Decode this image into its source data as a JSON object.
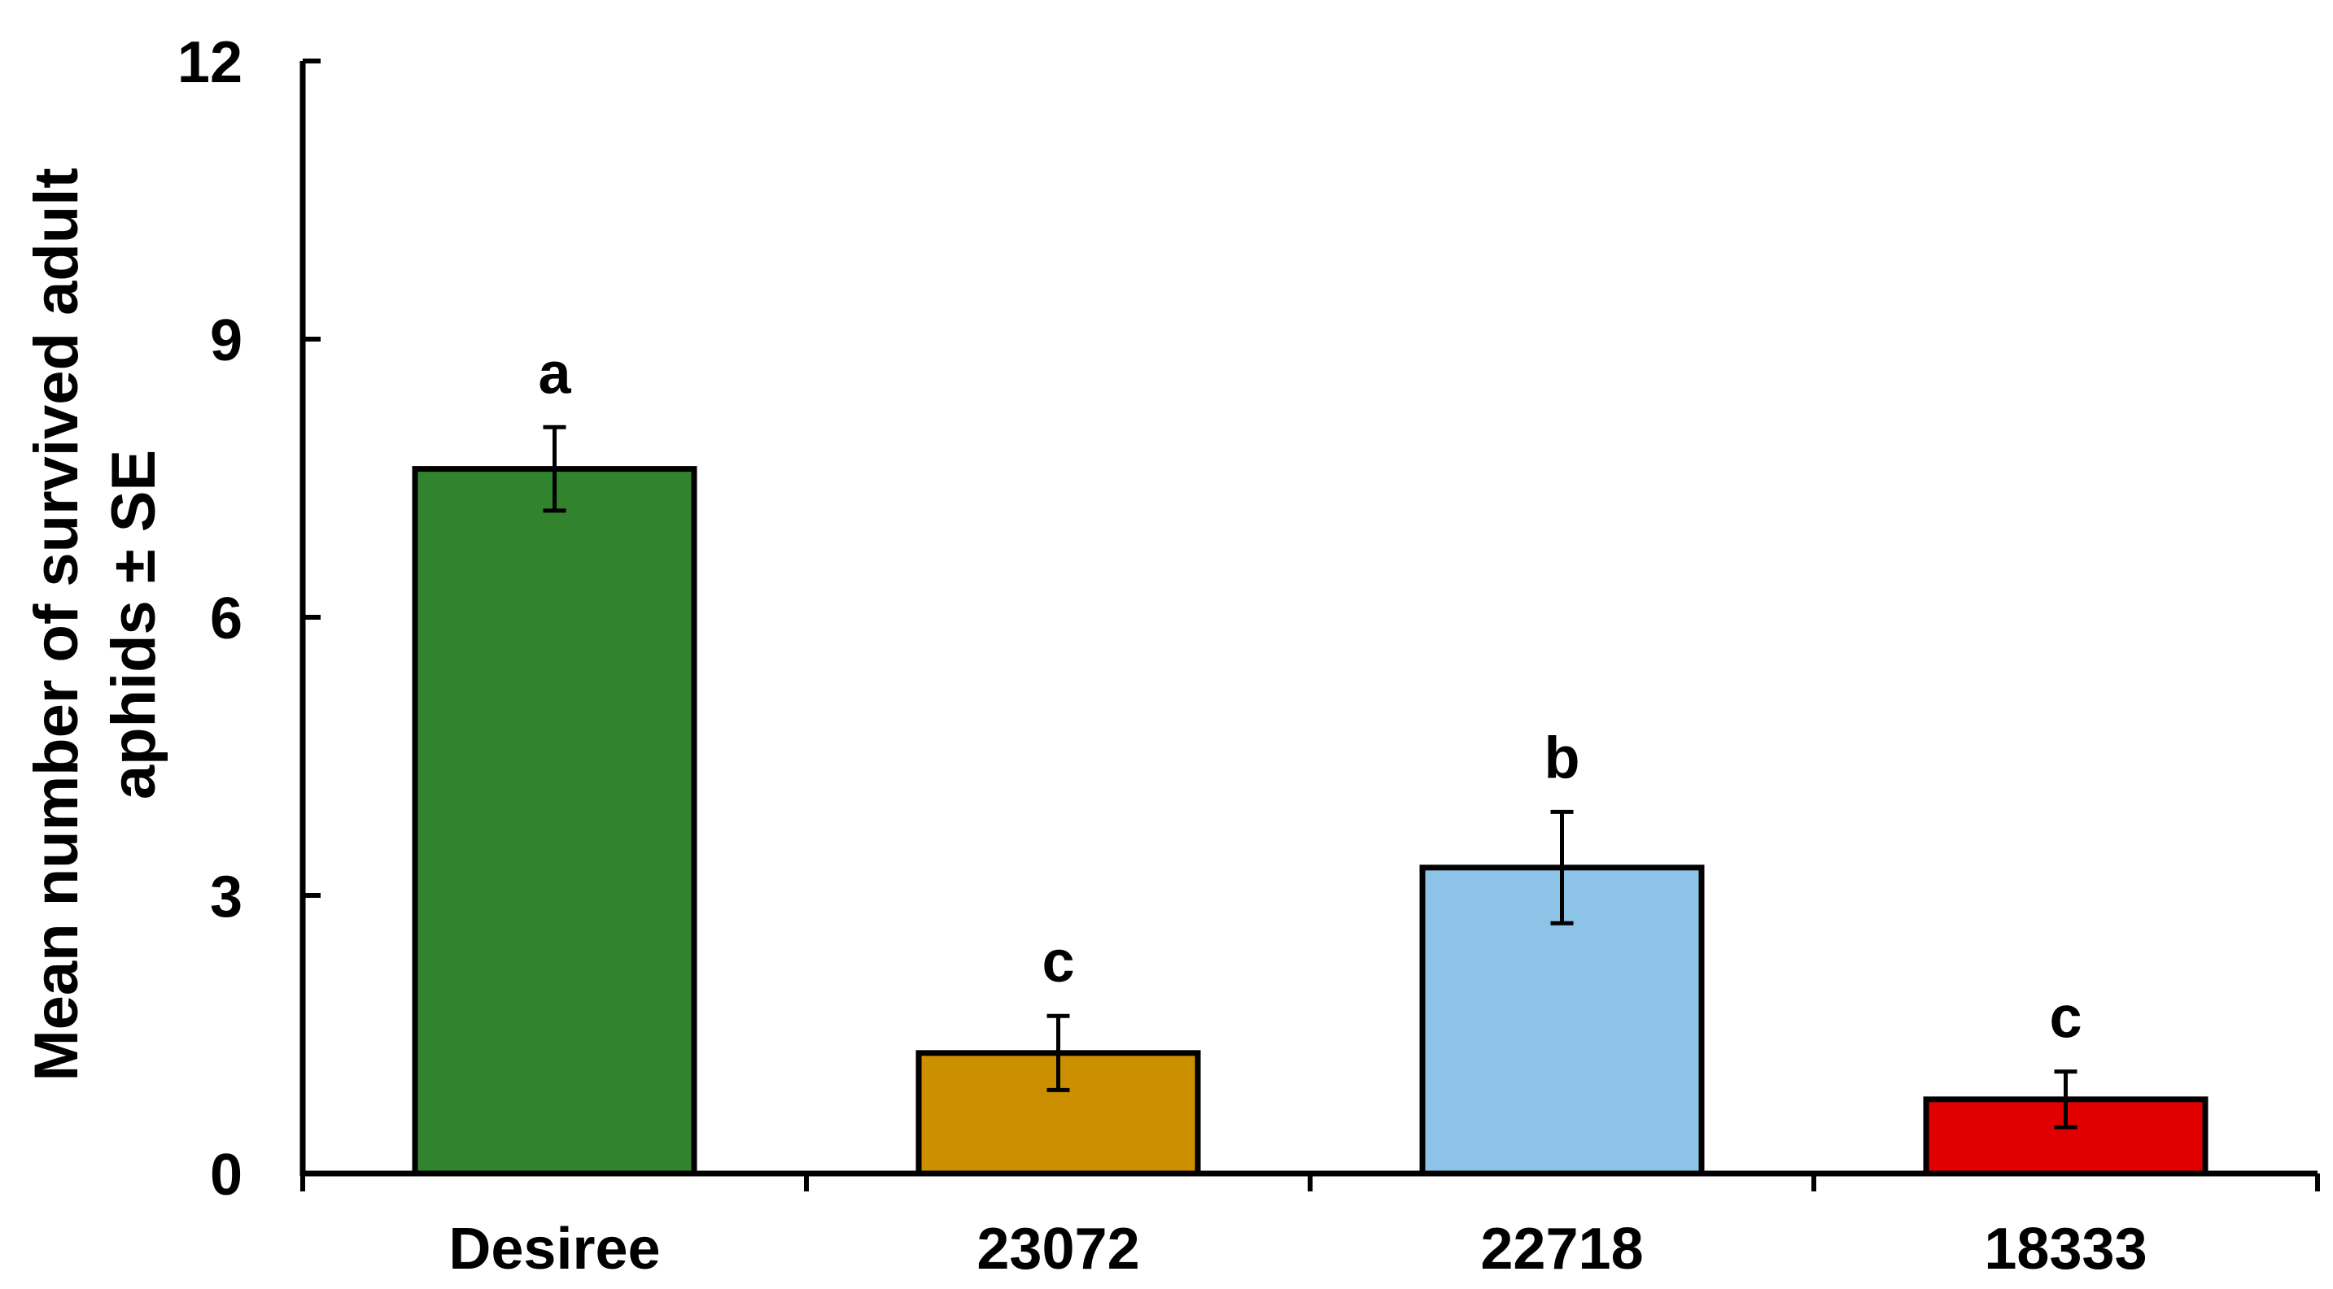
{
  "chart_data": {
    "type": "bar",
    "categories": [
      "Desiree",
      "23072",
      "22718",
      "18333"
    ],
    "values": [
      7.6,
      1.3,
      3.3,
      0.8
    ],
    "errors": [
      0.45,
      0.4,
      0.6,
      0.3
    ],
    "significance_letters": [
      "a",
      "c",
      "b",
      "c"
    ],
    "bar_colors": [
      "#31832e",
      "#cc8f00",
      "#8dc3e6",
      "#e10000"
    ],
    "ylabel_lines": [
      "Mean number of survived adult",
      "aphids ± SE"
    ],
    "xlabel": "",
    "title": "",
    "ylim": [
      0,
      12
    ],
    "yticks": [
      "0",
      "3",
      "6",
      "9",
      "12"
    ],
    "grid": false,
    "legend": false
  }
}
